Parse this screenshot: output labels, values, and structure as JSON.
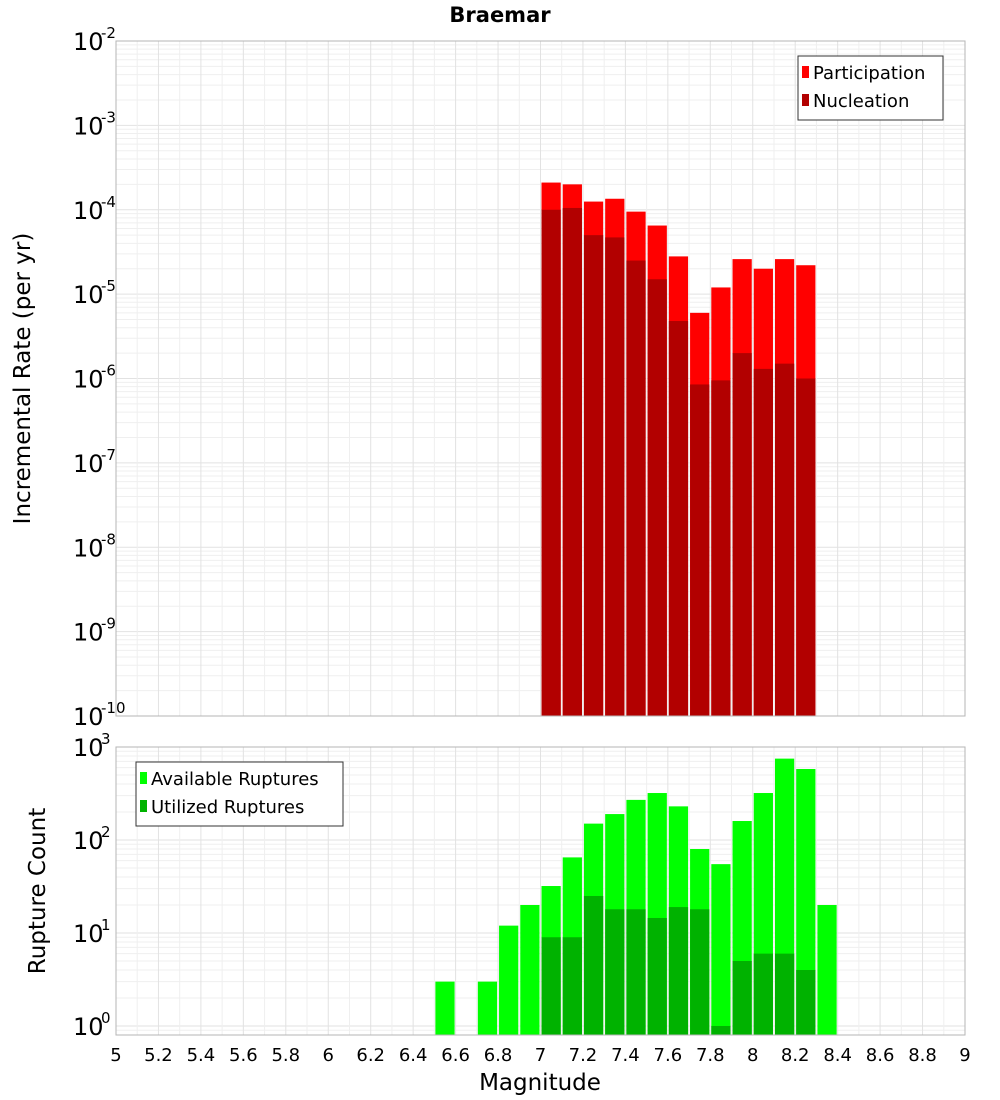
{
  "chart_data": [
    {
      "type": "bar",
      "title": "Braemar",
      "xlabel": "",
      "ylabel": "Incremental Rate (per yr)",
      "xlim": [
        5,
        9
      ],
      "ylim": [
        1e-10,
        0.01
      ],
      "y_scale": "log",
      "grid": true,
      "legend_position": "top-right",
      "x": [
        7.05,
        7.15,
        7.25,
        7.35,
        7.45,
        7.55,
        7.65,
        7.75,
        7.85,
        7.95,
        8.05,
        8.15,
        8.25
      ],
      "bin_width": 0.1,
      "series": [
        {
          "name": "Participation",
          "color": "#ff0000",
          "values": [
            0.00021,
            0.0002,
            0.000125,
            0.000135,
            9.5e-05,
            6.5e-05,
            2.8e-05,
            6e-06,
            1.2e-05,
            2.6e-05,
            2e-05,
            2.6e-05,
            2.2e-05
          ]
        },
        {
          "name": "Nucleation",
          "color": "#b20000",
          "values": [
            0.0001,
            0.000105,
            5e-05,
            4.7e-05,
            2.5e-05,
            1.5e-05,
            4.8e-06,
            8.5e-07,
            9.5e-07,
            2e-06,
            1.3e-06,
            1.5e-06,
            1e-06
          ]
        }
      ],
      "ytick_exponents": [
        -10,
        -9,
        -8,
        -7,
        -6,
        -5,
        -4,
        -3,
        -2
      ]
    },
    {
      "type": "bar",
      "title": "",
      "xlabel": "Magnitude",
      "ylabel": "Rupture Count",
      "xlim": [
        5,
        9
      ],
      "ylim": [
        0.8,
        1000
      ],
      "y_scale": "log",
      "grid": true,
      "legend_position": "top-left",
      "x": [
        6.55,
        6.65,
        6.75,
        6.85,
        6.95,
        7.05,
        7.15,
        7.25,
        7.35,
        7.45,
        7.55,
        7.65,
        7.75,
        7.85,
        7.95,
        8.05,
        8.15,
        8.25,
        8.35
      ],
      "bin_width": 0.1,
      "series": [
        {
          "name": "Available Ruptures",
          "color": "#00ff00",
          "values": [
            3,
            null,
            3,
            12,
            20,
            32,
            65,
            150,
            190,
            270,
            320,
            230,
            80,
            55,
            160,
            320,
            750,
            580,
            20
          ]
        },
        {
          "name": "Utilized Ruptures",
          "color": "#00b200",
          "values": [
            null,
            null,
            null,
            null,
            null,
            9,
            9,
            25,
            18,
            18,
            14.5,
            19,
            18,
            1,
            5,
            6,
            6,
            4,
            null
          ]
        }
      ],
      "ytick_exponents": [
        0,
        1,
        2,
        3
      ]
    }
  ],
  "x_ticks": [
    "5",
    "5.2",
    "5.4",
    "5.6",
    "5.8",
    "6",
    "6.2",
    "6.4",
    "6.6",
    "6.8",
    "7",
    "7.2",
    "7.4",
    "7.6",
    "7.8",
    "8",
    "8.2",
    "8.4",
    "8.6",
    "8.8",
    "9"
  ],
  "tick_base": "10"
}
